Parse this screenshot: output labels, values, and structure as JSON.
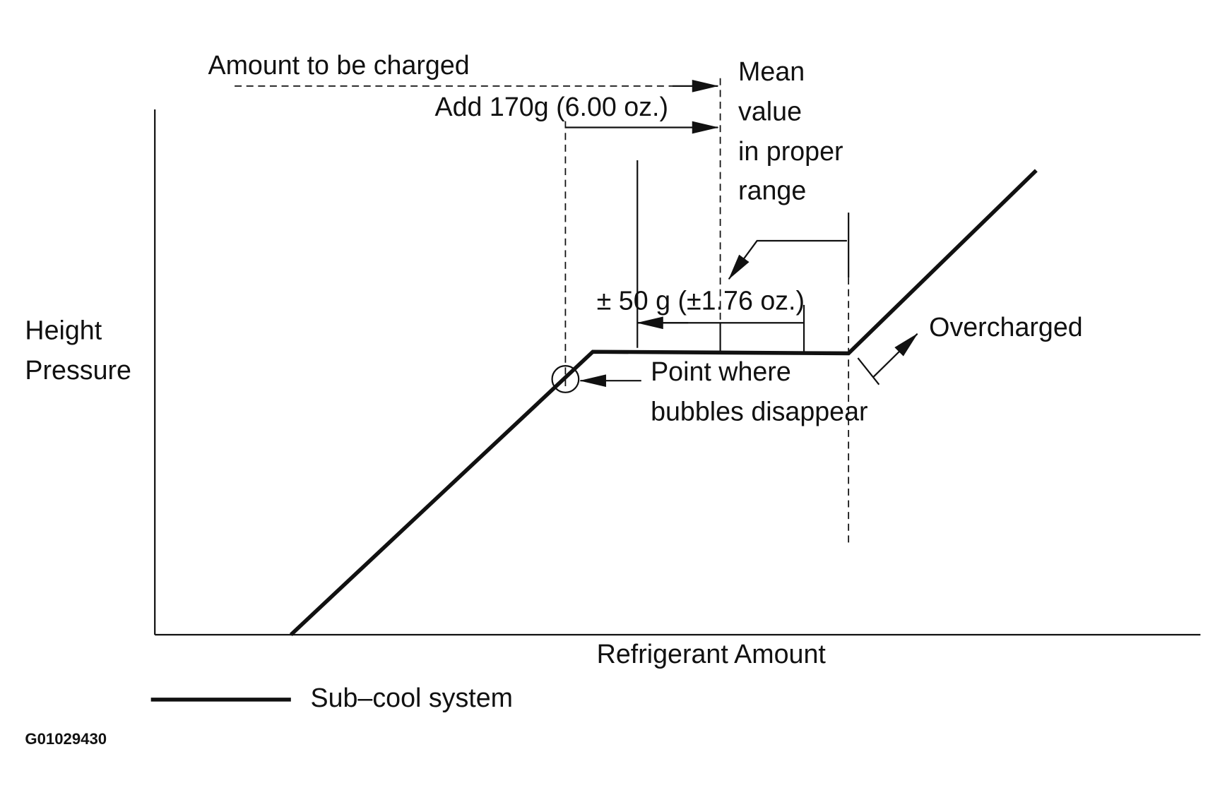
{
  "annotations": {
    "amount_to_be_charged": "Amount to be charged",
    "add_amount": "Add 170g (6.00 oz.)",
    "mean_value_lines": [
      "Mean",
      "value",
      "in proper",
      "range"
    ],
    "tolerance": "± 50 g (±1.76 oz.)",
    "overcharged": "Overcharged",
    "bubbles_point_lines": [
      "Point where",
      "bubbles disappear"
    ]
  },
  "axes": {
    "y_label_lines": [
      "Height",
      "Pressure"
    ],
    "x_label": "Refrigerant Amount"
  },
  "legend": {
    "label": "Sub–cool system"
  },
  "figure_id": "G01029430"
}
